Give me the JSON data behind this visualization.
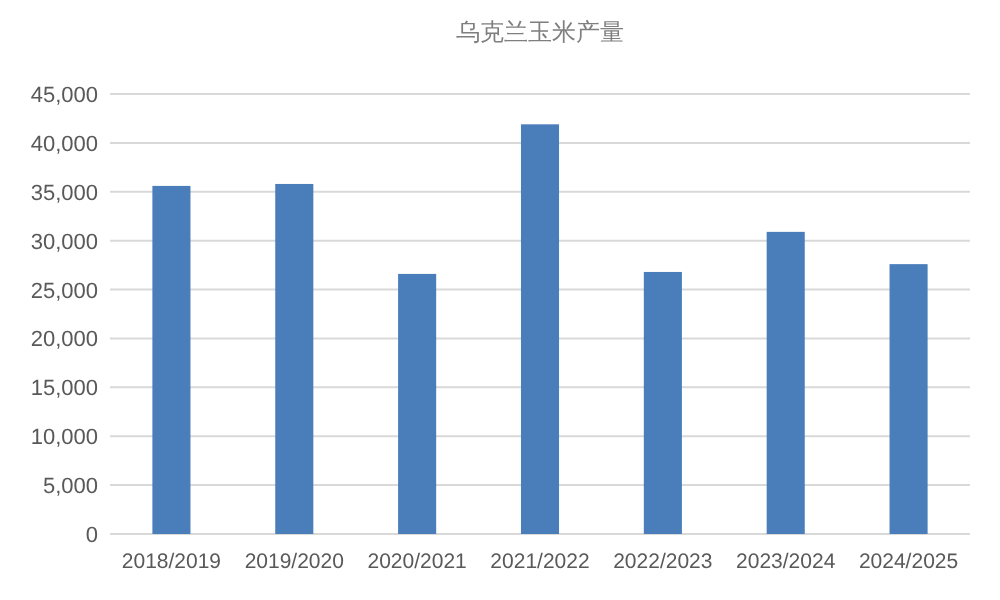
{
  "chart_data": {
    "type": "bar",
    "title": "乌克兰玉米产量",
    "categories": [
      "2018/2019",
      "2019/2020",
      "2020/2021",
      "2021/2022",
      "2022/2023",
      "2023/2024",
      "2024/2025"
    ],
    "values": [
      35600,
      35800,
      26600,
      41900,
      26800,
      30900,
      27600
    ],
    "color": "#4a7ebb",
    "ylim": [
      0,
      45000
    ],
    "yticks": [
      {
        "value": 0,
        "label": "0"
      },
      {
        "value": 5000,
        "label": "5,000"
      },
      {
        "value": 10000,
        "label": "10,000"
      },
      {
        "value": 15000,
        "label": "15,000"
      },
      {
        "value": 20000,
        "label": "20,000"
      },
      {
        "value": 25000,
        "label": "25,000"
      },
      {
        "value": 30000,
        "label": "30,000"
      },
      {
        "value": 35000,
        "label": "35,000"
      },
      {
        "value": 40000,
        "label": "40,000"
      },
      {
        "value": 45000,
        "label": "45,000"
      }
    ],
    "grid": "y"
  }
}
